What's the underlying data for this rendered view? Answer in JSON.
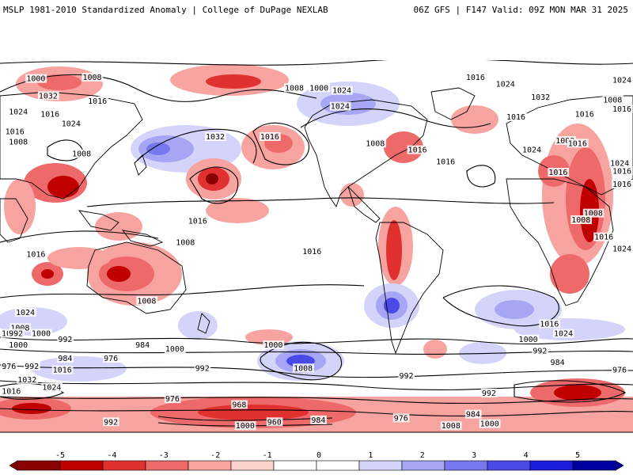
{
  "header": {
    "left_title": "MSLP 1981-2010 Standardized Anomaly | College of DuPage NEXLAB",
    "right_title": "06Z GFS | F147 Valid: 09Z MON MAR 31 2025"
  },
  "map": {
    "projection": "global-equirectangular",
    "isobar_labels": [
      {
        "text": "1000",
        "lon": -165,
        "lat": 74
      },
      {
        "text": "1008",
        "lon": -133,
        "lat": 75
      },
      {
        "text": "1016",
        "lon": -130,
        "lat": 57
      },
      {
        "text": "1016",
        "lon": -157,
        "lat": 47
      },
      {
        "text": "1024",
        "lon": -175,
        "lat": 49
      },
      {
        "text": "1024",
        "lon": -145,
        "lat": 40
      },
      {
        "text": "1016",
        "lon": -177,
        "lat": 34
      },
      {
        "text": "1008",
        "lon": -175,
        "lat": 26
      },
      {
        "text": "1008",
        "lon": -139,
        "lat": 17
      },
      {
        "text": "1008",
        "lon": -18,
        "lat": 67
      },
      {
        "text": "1000",
        "lon": -4,
        "lat": 67
      },
      {
        "text": "1024",
        "lon": 9,
        "lat": 65
      },
      {
        "text": "1024",
        "lon": 8,
        "lat": 53
      },
      {
        "text": "1016",
        "lon": 85,
        "lat": 75
      },
      {
        "text": "1024",
        "lon": 102,
        "lat": 70
      },
      {
        "text": "1032",
        "lon": 122,
        "lat": 60
      },
      {
        "text": "1016",
        "lon": 147,
        "lat": 47
      },
      {
        "text": "1016",
        "lon": 108,
        "lat": 45
      },
      {
        "text": "1032",
        "lon": -63,
        "lat": 30
      },
      {
        "text": "1016",
        "lon": -32,
        "lat": 30
      },
      {
        "text": "1008",
        "lon": 28,
        "lat": 25
      },
      {
        "text": "1016",
        "lon": 52,
        "lat": 20
      },
      {
        "text": "1016",
        "lon": 68,
        "lat": 11
      },
      {
        "text": "1024",
        "lon": 117,
        "lat": 20
      },
      {
        "text": "1008",
        "lon": 136,
        "lat": 27
      },
      {
        "text": "1016",
        "lon": 132,
        "lat": 3
      },
      {
        "text": "1024",
        "lon": 177,
        "lat": 73
      },
      {
        "text": "1032",
        "lon": -158,
        "lat": 61
      },
      {
        "text": "1008",
        "lon": 163,
        "lat": 58
      },
      {
        "text": "1016",
        "lon": 174,
        "lat": 51
      },
      {
        "text": "1016",
        "lon": 143,
        "lat": 25
      },
      {
        "text": "1016",
        "lon": 172,
        "lat": 4
      },
      {
        "text": "1024",
        "lon": 167,
        "lat": 10
      },
      {
        "text": "1008",
        "lon": 152,
        "lat": -28
      },
      {
        "text": "1016",
        "lon": 175,
        "lat": -6
      },
      {
        "text": "1008",
        "lon": 145,
        "lat": -33
      },
      {
        "text": "1016",
        "lon": 158,
        "lat": -46
      },
      {
        "text": "1024",
        "lon": 170,
        "lat": -55
      },
      {
        "text": "1016",
        "lon": -73,
        "lat": -34
      },
      {
        "text": "1008",
        "lon": -80,
        "lat": -50
      },
      {
        "text": "1016",
        "lon": -8,
        "lat": -57
      },
      {
        "text": "1008",
        "lon": -102,
        "lat": -63
      },
      {
        "text": "1016",
        "lon": -165,
        "lat": -59
      },
      {
        "text": "1024",
        "lon": -171,
        "lat": -69
      },
      {
        "text": "1008",
        "lon": -174,
        "lat": -77
      },
      {
        "text": "1000",
        "lon": -162,
        "lat": -80
      },
      {
        "text": "992",
        "lon": -147,
        "lat": -83
      },
      {
        "text": "984",
        "lon": -103,
        "lat": -86
      },
      {
        "text": "976",
        "lon": -121,
        "lat": -93
      },
      {
        "text": "1000",
        "lon": -86,
        "lat": -88
      },
      {
        "text": "1008",
        "lon": -13,
        "lat": -98
      },
      {
        "text": "992",
        "lon": -69,
        "lat": -98
      },
      {
        "text": "1000",
        "lon": -30,
        "lat": -86
      },
      {
        "text": "992",
        "lon": 47,
        "lat": -102
      },
      {
        "text": "984",
        "lon": 133,
        "lat": -95
      },
      {
        "text": "992",
        "lon": 123,
        "lat": -89
      },
      {
        "text": "1000",
        "lon": 115,
        "lat": -83
      },
      {
        "text": "1016",
        "lon": 127,
        "lat": -75
      },
      {
        "text": "1024",
        "lon": 135,
        "lat": -80
      },
      {
        "text": "976",
        "lon": 170,
        "lat": -99
      },
      {
        "text": "992",
        "lon": 94,
        "lat": -111
      },
      {
        "text": "984",
        "lon": 85,
        "lat": -122
      },
      {
        "text": "976",
        "lon": 44,
        "lat": -124
      },
      {
        "text": "984",
        "lon": -3,
        "lat": -125
      },
      {
        "text": "960",
        "lon": -28,
        "lat": -126
      },
      {
        "text": "968",
        "lon": -48,
        "lat": -117
      },
      {
        "text": "976",
        "lon": -86,
        "lat": -114
      },
      {
        "text": "1008",
        "lon": 71,
        "lat": -128
      },
      {
        "text": "1000",
        "lon": 93,
        "lat": -127
      },
      {
        "text": "1000",
        "lon": -46,
        "lat": -128
      },
      {
        "text": "992",
        "lon": -121,
        "lat": -126
      },
      {
        "text": "1024",
        "lon": -156,
        "lat": -108
      },
      {
        "text": "1032",
        "lon": -170,
        "lat": -104
      },
      {
        "text": "1016",
        "lon": -179,
        "lat": -110
      },
      {
        "text": "1016",
        "lon": -150,
        "lat": -99
      },
      {
        "text": "984",
        "lon": -147,
        "lat": -93
      },
      {
        "text": "976",
        "lon": -179,
        "lat": -97
      },
      {
        "text": "992",
        "lon": -166,
        "lat": -97
      },
      {
        "text": "1000",
        "lon": -175,
        "lat": -86
      },
      {
        "text": "1008",
        "lon": -180,
        "lat": -80
      },
      {
        "text": "992",
        "lon": -175,
        "lat": -80
      }
    ]
  },
  "colorbar": {
    "ticks": [
      "-5",
      "-4",
      "-3",
      "-2",
      "-1",
      "0",
      "1",
      "2",
      "3",
      "4",
      "5"
    ],
    "colors": [
      "#8b0000",
      "#c00000",
      "#e03030",
      "#ee6a6a",
      "#f7a3a0",
      "#fcd2cc",
      "#ffffff",
      "#ffffff",
      "#d4d4fb",
      "#a6a6f5",
      "#7878ee",
      "#4a4ae6",
      "#1c1cdc",
      "#0000a0"
    ]
  }
}
